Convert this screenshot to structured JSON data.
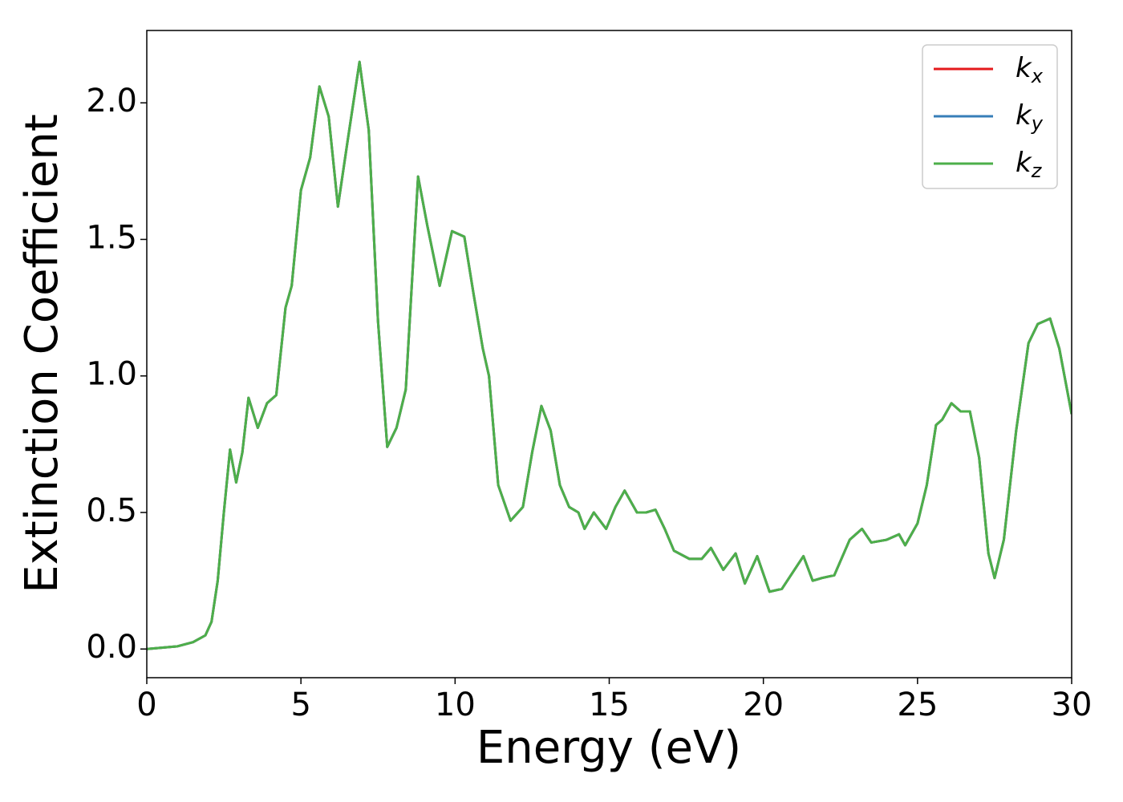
{
  "chart_data": {
    "type": "line",
    "xlabel": "Energy (eV)",
    "ylabel": "Extinction Coefficient",
    "x": [
      0,
      1,
      1.5,
      1.9,
      2.1,
      2.3,
      2.5,
      2.7,
      2.9,
      3.1,
      3.3,
      3.6,
      3.9,
      4.2,
      4.5,
      4.7,
      5.0,
      5.3,
      5.6,
      5.9,
      6.2,
      6.5,
      6.9,
      7.2,
      7.5,
      7.8,
      8.1,
      8.4,
      8.8,
      9.1,
      9.5,
      9.9,
      10.3,
      10.6,
      10.9,
      11.1,
      11.4,
      11.8,
      12.2,
      12.5,
      12.8,
      13.1,
      13.4,
      13.7,
      14.0,
      14.2,
      14.5,
      14.9,
      15.2,
      15.5,
      15.9,
      16.2,
      16.5,
      16.8,
      17.1,
      17.6,
      18.0,
      18.3,
      18.7,
      19.1,
      19.4,
      19.8,
      20.2,
      20.6,
      21.3,
      21.6,
      21.9,
      22.3,
      22.8,
      23.2,
      23.5,
      24.0,
      24.4,
      24.6,
      25.0,
      25.3,
      25.6,
      25.8,
      26.1,
      26.4,
      26.7,
      27.0,
      27.3,
      27.5,
      27.8,
      28.2,
      28.6,
      28.9,
      29.3,
      29.6,
      30.0
    ],
    "series": [
      {
        "name": "kx",
        "color": "#e41a1c",
        "values": [
          0.0,
          0.01,
          0.025,
          0.05,
          0.1,
          0.25,
          0.5,
          0.73,
          0.61,
          0.72,
          0.92,
          0.81,
          0.9,
          0.93,
          1.25,
          1.33,
          1.68,
          1.8,
          2.06,
          1.95,
          1.62,
          1.85,
          2.15,
          1.9,
          1.2,
          0.74,
          0.81,
          0.95,
          1.73,
          1.55,
          1.33,
          1.53,
          1.51,
          1.3,
          1.1,
          1.0,
          0.6,
          0.47,
          0.52,
          0.72,
          0.89,
          0.8,
          0.6,
          0.52,
          0.5,
          0.44,
          0.5,
          0.44,
          0.52,
          0.58,
          0.5,
          0.5,
          0.51,
          0.44,
          0.36,
          0.33,
          0.33,
          0.37,
          0.29,
          0.35,
          0.24,
          0.34,
          0.21,
          0.22,
          0.34,
          0.25,
          0.26,
          0.27,
          0.4,
          0.44,
          0.39,
          0.4,
          0.42,
          0.38,
          0.46,
          0.6,
          0.82,
          0.84,
          0.9,
          0.87,
          0.87,
          0.7,
          0.35,
          0.26,
          0.4,
          0.8,
          1.12,
          1.19,
          1.21,
          1.1,
          0.86
        ]
      },
      {
        "name": "ky",
        "color": "#377eb8",
        "values": [
          0.0,
          0.01,
          0.025,
          0.05,
          0.1,
          0.25,
          0.5,
          0.73,
          0.61,
          0.72,
          0.92,
          0.81,
          0.9,
          0.93,
          1.25,
          1.33,
          1.68,
          1.8,
          2.06,
          1.95,
          1.62,
          1.85,
          2.15,
          1.9,
          1.2,
          0.74,
          0.81,
          0.95,
          1.73,
          1.55,
          1.33,
          1.53,
          1.51,
          1.3,
          1.1,
          1.0,
          0.6,
          0.47,
          0.52,
          0.72,
          0.89,
          0.8,
          0.6,
          0.52,
          0.5,
          0.44,
          0.5,
          0.44,
          0.52,
          0.58,
          0.5,
          0.5,
          0.51,
          0.44,
          0.36,
          0.33,
          0.33,
          0.37,
          0.29,
          0.35,
          0.24,
          0.34,
          0.21,
          0.22,
          0.34,
          0.25,
          0.26,
          0.27,
          0.4,
          0.44,
          0.39,
          0.4,
          0.42,
          0.38,
          0.46,
          0.6,
          0.82,
          0.84,
          0.9,
          0.87,
          0.87,
          0.7,
          0.35,
          0.26,
          0.4,
          0.8,
          1.12,
          1.19,
          1.21,
          1.1,
          0.86
        ]
      },
      {
        "name": "kz",
        "color": "#4daf4a",
        "values": [
          0.0,
          0.01,
          0.025,
          0.05,
          0.1,
          0.25,
          0.5,
          0.73,
          0.61,
          0.72,
          0.92,
          0.81,
          0.9,
          0.93,
          1.25,
          1.33,
          1.68,
          1.8,
          2.06,
          1.95,
          1.62,
          1.85,
          2.15,
          1.9,
          1.2,
          0.74,
          0.81,
          0.95,
          1.73,
          1.55,
          1.33,
          1.53,
          1.51,
          1.3,
          1.1,
          1.0,
          0.6,
          0.47,
          0.52,
          0.72,
          0.89,
          0.8,
          0.6,
          0.52,
          0.5,
          0.44,
          0.5,
          0.44,
          0.52,
          0.58,
          0.5,
          0.5,
          0.51,
          0.44,
          0.36,
          0.33,
          0.33,
          0.37,
          0.29,
          0.35,
          0.24,
          0.34,
          0.21,
          0.22,
          0.34,
          0.25,
          0.26,
          0.27,
          0.4,
          0.44,
          0.39,
          0.4,
          0.42,
          0.38,
          0.46,
          0.6,
          0.82,
          0.84,
          0.9,
          0.87,
          0.87,
          0.7,
          0.35,
          0.26,
          0.4,
          0.8,
          1.12,
          1.19,
          1.21,
          1.1,
          0.86
        ]
      }
    ],
    "xlim": [
      0,
      30
    ],
    "xticks": [
      0,
      5,
      10,
      15,
      20,
      25,
      30
    ],
    "ylim": [
      -0.105,
      2.265
    ],
    "yticks": [
      {
        "value": 0,
        "label": "0.0"
      },
      0.5,
      {
        "value": 1,
        "label": "1.0"
      },
      1.5,
      {
        "value": 2,
        "label": "2.0"
      }
    ],
    "grid": false,
    "legend": "upper right"
  }
}
